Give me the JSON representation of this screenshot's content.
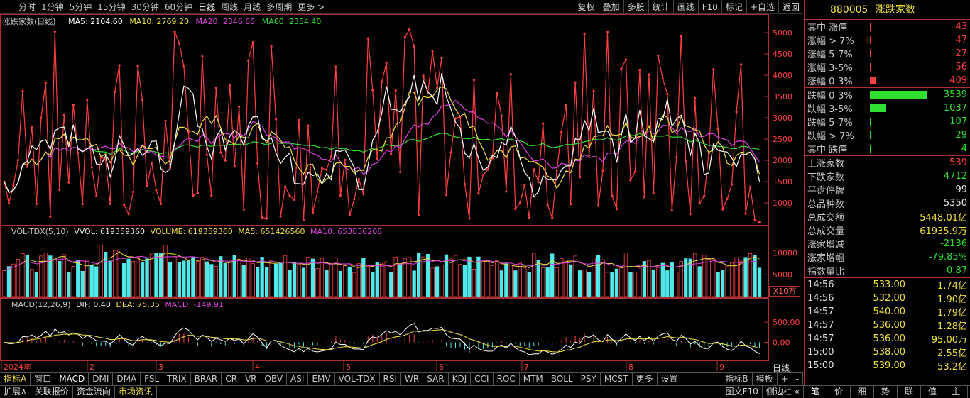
{
  "toolbar": {
    "periods": [
      "分时",
      "1分钟",
      "5分钟",
      "15分钟",
      "30分钟",
      "60分钟",
      "日线",
      "周线",
      "月线",
      "多周期",
      "更多 >"
    ],
    "active_period": "日线",
    "tools": [
      "复权",
      "叠加",
      "多股",
      "统计",
      "画线",
      "F10",
      "标记",
      "+自选",
      "返回"
    ]
  },
  "main_chart": {
    "name": "涨跌家数(日线)",
    "ma5": "MA5: 2104.60",
    "ma10": "MA10: 2769.20",
    "ma20": "MA20: 2346.65",
    "ma60": "MA60: 2354.40",
    "y_ticks": [
      "5000",
      "4500",
      "4000",
      "3500",
      "3000",
      "2500",
      "2000",
      "1500",
      "1000"
    ],
    "colors": {
      "price": "#ff4040",
      "ma5": "#ffffff",
      "ma10": "#f0e040",
      "ma20": "#e040e0",
      "ma60": "#30e030"
    }
  },
  "vol_chart": {
    "name": "VOL-TDX(5,10)",
    "vvol": "VVOL: 619359360",
    "volume": "VOLUME: 619359360",
    "ma5": "MA5: 651426560",
    "ma10": "MA10: 653830208",
    "y_ticks": [
      "10000",
      "5000"
    ],
    "unit": "X10万"
  },
  "macd_chart": {
    "name": "MACD(12,26,9)",
    "dif": "DIF: 0.40",
    "dea": "DEA: 75.35",
    "macd": "MACD: -149.91",
    "y_ticks": [
      "500.00",
      "0.00"
    ]
  },
  "x_axis": {
    "labels": [
      "2024年",
      "2",
      "3",
      "4",
      "5",
      "6",
      "7",
      "8",
      "9"
    ],
    "period_label": "日线"
  },
  "indicator_tabs": [
    "指标A",
    "窗口",
    "MACD",
    "DMI",
    "DMA",
    "FSL",
    "TRIX",
    "BRAR",
    "CR",
    "VR",
    "OBV",
    "ASI",
    "EMV",
    "VOL-TDX",
    "RSI",
    "WR",
    "SAR",
    "KDJ",
    "CCI",
    "ROC",
    "MTM",
    "BOLL",
    "PSY",
    "MCST",
    "更多",
    "设置"
  ],
  "indicator_right": [
    "指标B",
    "模板",
    "+",
    "-"
  ],
  "bottom_tabs": [
    "扩展∧",
    "关联报价",
    "资金流向",
    "市场资讯"
  ],
  "bottom_right": [
    "图文F10",
    "侧边栏 «"
  ],
  "panel": {
    "code": "880005",
    "name": "涨跌家数",
    "up_rows": [
      {
        "label": "其中 涨停",
        "value": "43",
        "ratio": 0.012
      },
      {
        "label": "涨幅 > 7%",
        "value": "47",
        "ratio": 0.013
      },
      {
        "label": "涨幅 5-7%",
        "value": "27",
        "ratio": 0.008
      },
      {
        "label": "涨幅 3-5%",
        "value": "56",
        "ratio": 0.016
      },
      {
        "label": "涨幅 0-3%",
        "value": "409",
        "ratio": 0.116
      }
    ],
    "down_rows": [
      {
        "label": "跌幅 0-3%",
        "value": "3539",
        "ratio": 1.0
      },
      {
        "label": "跌幅 3-5%",
        "value": "1037",
        "ratio": 0.293
      },
      {
        "label": "跌幅 5-7%",
        "value": "107",
        "ratio": 0.03
      },
      {
        "label": "跌幅 > 7%",
        "value": "29",
        "ratio": 0.008
      },
      {
        "label": "其中 跌停",
        "value": "4",
        "ratio": 0.0
      }
    ],
    "stats": [
      {
        "label": "上涨家数",
        "value": "539",
        "color": "red"
      },
      {
        "label": "下跌家数",
        "value": "4712",
        "color": "green"
      },
      {
        "label": "平盘停牌",
        "value": "99",
        "color": "white"
      },
      {
        "label": "总品种数",
        "value": "5350",
        "color": "white"
      },
      {
        "label": "总成交额",
        "value": "5448.01亿",
        "color": "yellow"
      },
      {
        "label": "总成交量",
        "value": "61935.9万",
        "color": "yellow"
      },
      {
        "label": "涨家增减",
        "value": "-2136",
        "color": "green"
      },
      {
        "label": "涨家增幅",
        "value": "-79.85%",
        "color": "green"
      },
      {
        "label": "指数量比",
        "value": "0.87",
        "color": "green"
      }
    ],
    "ticks": [
      {
        "time": "14:56",
        "price": "533.00",
        "amount": "1.74亿"
      },
      {
        "time": "14:56",
        "price": "532.00",
        "amount": "1.90亿"
      },
      {
        "time": "14:57",
        "price": "540.00",
        "amount": "1.79亿"
      },
      {
        "time": "14:57",
        "price": "536.00",
        "amount": "1.28亿"
      },
      {
        "time": "14:57",
        "price": "536.00",
        "amount": "95.00万"
      },
      {
        "time": "15:00",
        "price": "538.00",
        "amount": "2.55亿"
      },
      {
        "time": "15:00",
        "price": "539.00",
        "amount": "53.2亿"
      }
    ],
    "tabs": [
      "笔",
      "价",
      "细",
      "势",
      "联",
      "值",
      "主"
    ]
  }
}
